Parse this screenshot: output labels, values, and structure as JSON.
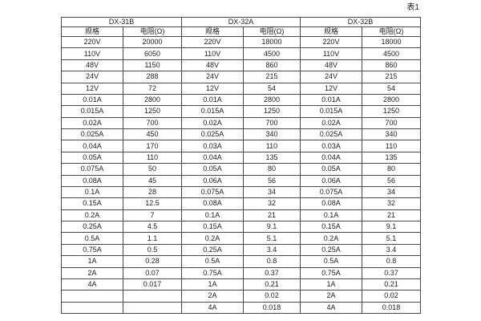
{
  "page": {
    "sheet_label": "表1"
  },
  "table": {
    "groups": [
      {
        "name": "DX-31B"
      },
      {
        "name": "DX-32A"
      },
      {
        "name": "DX-32B"
      }
    ],
    "col_headers": {
      "spec": "规格",
      "resistance": "电阻(Ω)"
    },
    "rows": [
      [
        "220V",
        "20000",
        "220V",
        "18000",
        "220V",
        "18000"
      ],
      [
        "110V",
        "6050",
        "110V",
        "4500",
        "110V",
        "4500"
      ],
      [
        "48V",
        "1150",
        "48V",
        "860",
        "48V",
        "860"
      ],
      [
        "24V",
        "288",
        "24V",
        "215",
        "24V",
        "215"
      ],
      [
        "12V",
        "72",
        "12V",
        "54",
        "12V",
        "54"
      ],
      [
        "0.01A",
        "2800",
        "0.01A",
        "2800",
        "0.01A",
        "2800"
      ],
      [
        "0.015A",
        "1250",
        "0.015A",
        "1250",
        "0.015A",
        "1250"
      ],
      [
        "0.02A",
        "700",
        "0.02A",
        "700",
        "0.02A",
        "700"
      ],
      [
        "0.025A",
        "450",
        "0.025A",
        "340",
        "0.025A",
        "340"
      ],
      [
        "0.04A",
        "170",
        "0.03A",
        "110",
        "0.03A",
        "110"
      ],
      [
        "0.05A",
        "110",
        "0.04A",
        "135",
        "0.04A",
        "135"
      ],
      [
        "0.075A",
        "50",
        "0.05A",
        "80",
        "0.05A",
        "80"
      ],
      [
        "0.08A",
        "45",
        "0.06A",
        "56",
        "0.06A",
        "56"
      ],
      [
        "0.1A",
        "28",
        "0.075A",
        "34",
        "0.075A",
        "34"
      ],
      [
        "0.15A",
        "12.5",
        "0.08A",
        "32",
        "0.08A",
        "32"
      ],
      [
        "0.2A",
        "7",
        "0.1A",
        "21",
        "0.1A",
        "21"
      ],
      [
        "0.25A",
        "4.5",
        "0.15A",
        "9.1",
        "0.15A",
        "9.1"
      ],
      [
        "0.5A",
        "1.1",
        "0.2A",
        "5.1",
        "0.2A",
        "5.1"
      ],
      [
        "0.75A",
        "0.5",
        "0.25A",
        "3.4",
        "0.25A",
        "3.4"
      ],
      [
        "1A",
        "0.28",
        "0.5A",
        "0.8",
        "0.5A",
        "0.8"
      ],
      [
        "2A",
        "0.07",
        "0.75A",
        "0.37",
        "0.75A",
        "0.37"
      ],
      [
        "4A",
        "0.017",
        "1A",
        "0.21",
        "1A",
        "0.21"
      ],
      [
        "",
        "",
        "2A",
        "0.02",
        "2A",
        "0.02"
      ],
      [
        "",
        "",
        "4A",
        "0.018",
        "4A",
        "0.018"
      ]
    ]
  }
}
